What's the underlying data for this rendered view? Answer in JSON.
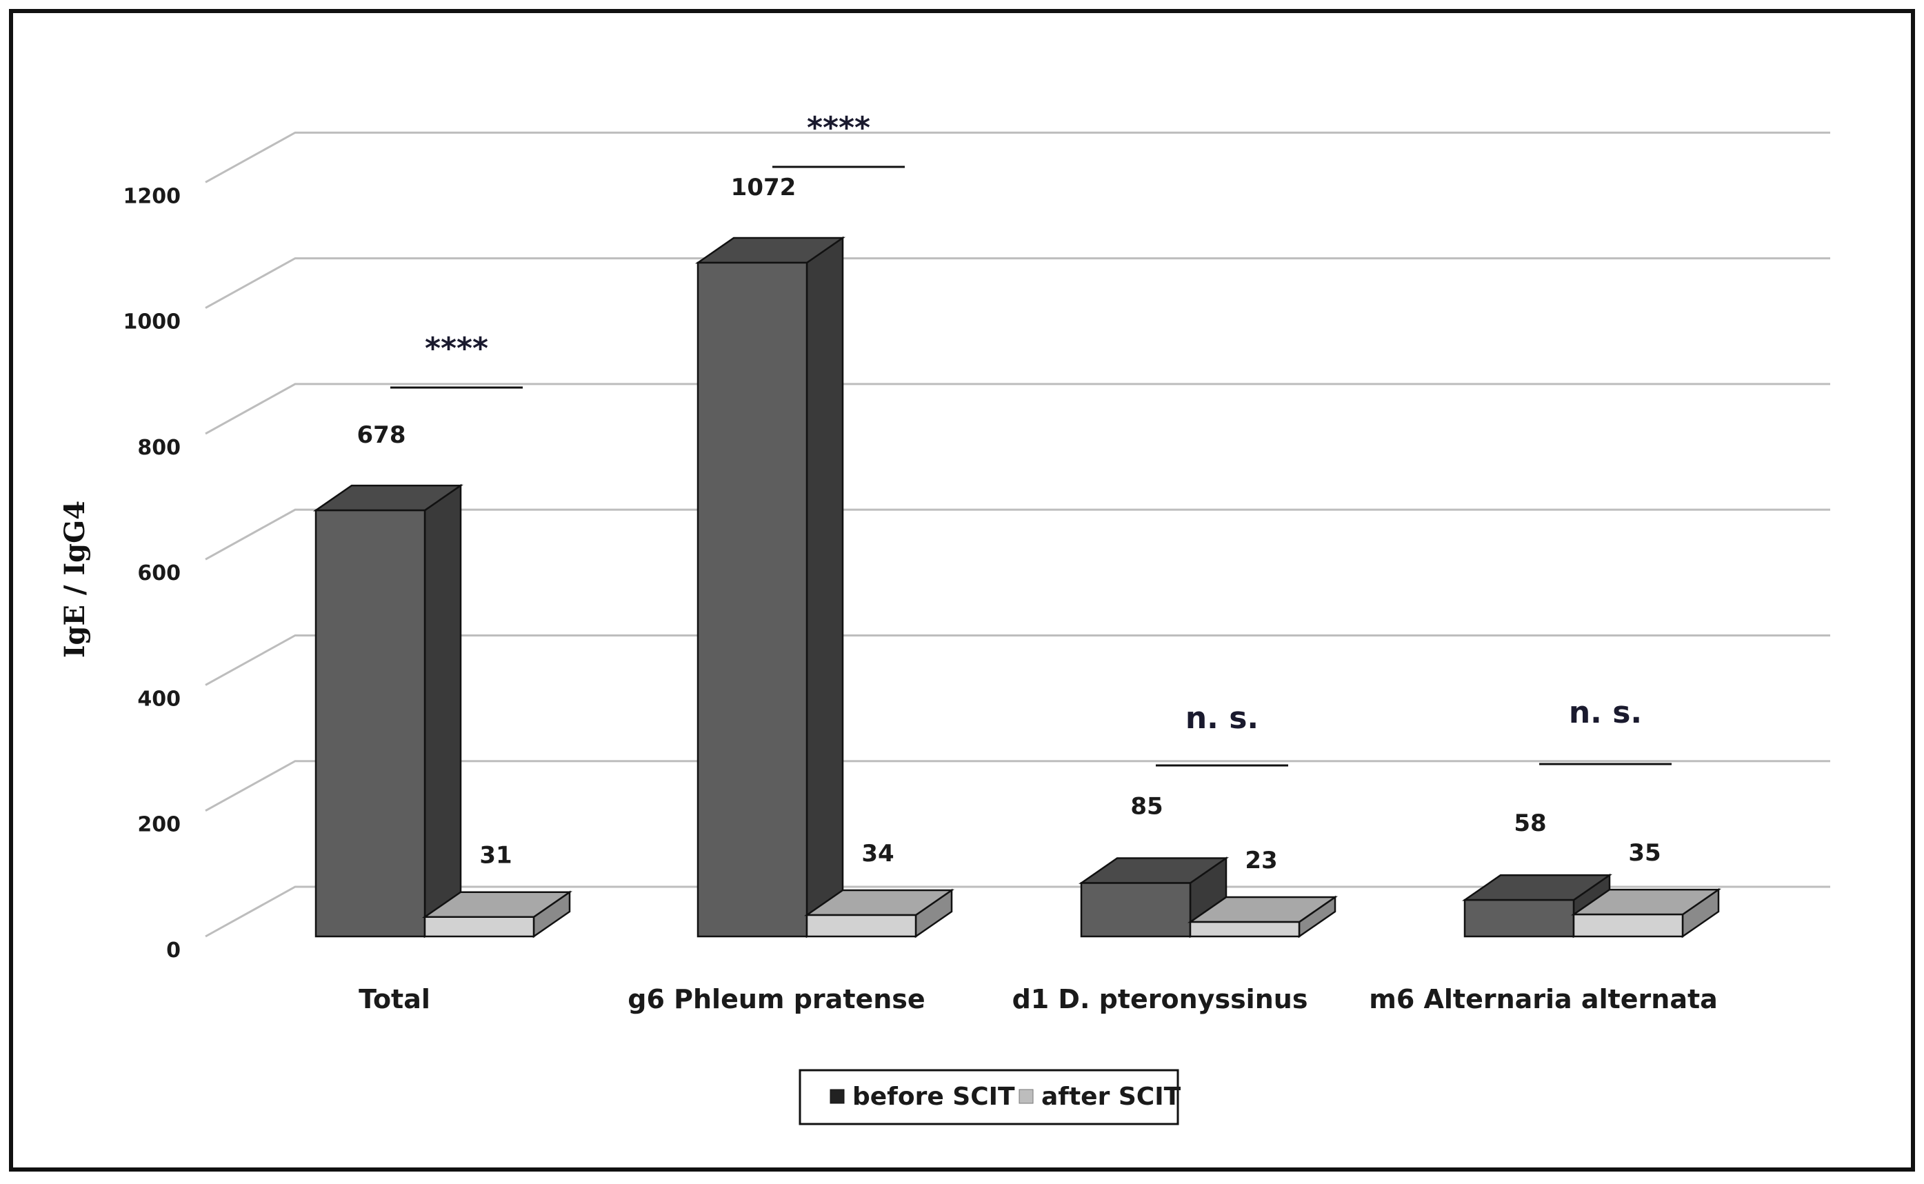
{
  "chart_data": {
    "type": "bar",
    "style": "3d-clustered-column",
    "ylabel": "IgE / IgG4",
    "ylim": [
      0,
      1200
    ],
    "yticks": [
      0,
      200,
      400,
      600,
      800,
      1000,
      1200
    ],
    "grid": true,
    "legend_position": "bottom",
    "categories": [
      "Total",
      "g6 Phleum pratense",
      "d1 D. pteronyssinus",
      "m6 Alternaria alternata"
    ],
    "series": [
      {
        "name": "before SCIT",
        "values": [
          678,
          1072,
          85,
          58
        ]
      },
      {
        "name": "after SCIT",
        "values": [
          31,
          34,
          23,
          35
        ]
      }
    ],
    "data_labels": {
      "before SCIT": [
        "678",
        "1072",
        "85",
        "58"
      ],
      "after SCIT": [
        "31",
        "34",
        "23",
        "35"
      ]
    },
    "significance": [
      "****",
      "****",
      "n. s.",
      "n. s."
    ],
    "colors": {
      "before_front": "#5e5e5e",
      "before_side": "#3a3a3a",
      "before_top": "#4a4a4a",
      "after_front": "#d2d2d2",
      "after_side": "#8a8a8a",
      "after_top": "#a8a8a8",
      "grid": "#bdbdbd"
    }
  }
}
